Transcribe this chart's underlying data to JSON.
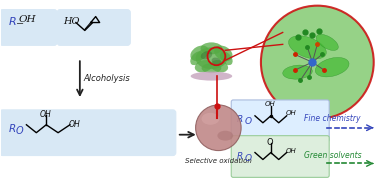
{
  "bg_color": "#ffffff",
  "box1_color": "#d8e8f5",
  "box2_color": "#d8e8f5",
  "box3_color": "#d8e8f5",
  "box4_color": "#ddeeff",
  "box5_color": "#ddeedd",
  "alcoholysis_text": "Alcoholysis",
  "selective_ox_text": "Selective oxidation",
  "fine_chem_text": "Fine chemistry",
  "green_solv_text": "Green solvents",
  "arrow_color": "#222222",
  "fine_chem_color": "#3344bb",
  "green_solv_color": "#228833",
  "red_color": "#cc1111",
  "sphere_color": "#c08888",
  "sphere_hi": "#d8a8a8",
  "sphere_shadow": "#a06868",
  "protein_green": "#55aa44",
  "protein_dark": "#336633",
  "protein_base": "#c8a8c0",
  "blue_atom": "#3366cc",
  "r_color": "#3344bb",
  "zoom_green": "#88cc77",
  "zoom_border": "#cc1111",
  "stem_color": "#c8b0c8"
}
